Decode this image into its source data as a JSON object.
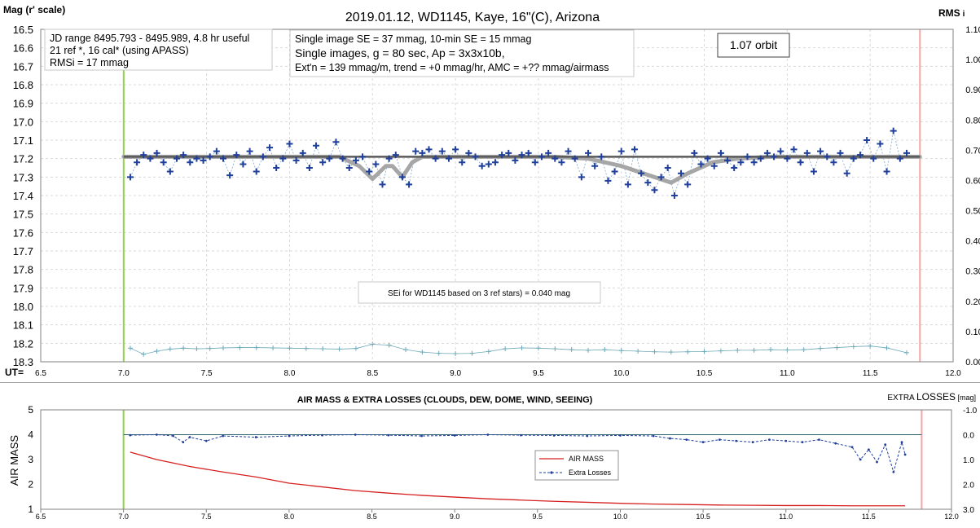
{
  "chart_data": [
    {
      "type": "scatter",
      "title": "2019.01.12, WD1145, Kaye, 16\"(C), Arizona",
      "ylabel": "Mag (r' scale)",
      "y2label": "RMS",
      "y2label_suffix": "i",
      "xlabel_left": "UT=",
      "xlim": [
        6.5,
        12.0
      ],
      "ylim": [
        18.3,
        16.5
      ],
      "y2lim": [
        0.0,
        1.1
      ],
      "grid": true,
      "xticks": [
        "6.5",
        "7.0",
        "7.5",
        "8.0",
        "8.5",
        "9.0",
        "9.5",
        "10.0",
        "10.5",
        "11.0",
        "11.5",
        "12.0"
      ],
      "yticks": [
        "16.5",
        "16.6",
        "16.7",
        "16.8",
        "16.9",
        "17.0",
        "17.1",
        "17.2",
        "17.3",
        "17.4",
        "17.5",
        "17.6",
        "17.7",
        "17.8",
        "17.9",
        "18.0",
        "18.1",
        "18.2",
        "18.3"
      ],
      "y2ticks": [
        "1.10",
        "1.00",
        "0.90",
        "0.80",
        "0.70",
        "0.60",
        "0.50",
        "0.40",
        "0.30",
        "0.20",
        "0.10",
        "0.00"
      ],
      "vlines": [
        {
          "x": 7.0,
          "color": "#92d050"
        },
        {
          "x": 11.8,
          "color": "#f4a6a6"
        }
      ],
      "annotations": {
        "box1": [
          "JD range 8495.793 - 8495.989, 4.8 hr useful",
          "21 ref *, 16 cal* (using APASS)",
          "RMSi = 17 mmag"
        ],
        "box2": [
          "Single image SE = 37 mmag, 10-min SE = 15 mmag",
          "Single images, g = 80 sec, Ap = 3x3x10b,",
          "Ext'n = 139 mmag/m, trend = +0 mmag/hr, AMC = +?? mmag/airmass"
        ],
        "orbit": "1.07 orbit",
        "sei": "SEi for WD1145 based on 3 ref stars) = 0.040 mag"
      },
      "series": [
        {
          "marker": "+",
          "color": "#1f3f9a",
          "x": [
            7.04,
            7.08,
            7.12,
            7.16,
            7.2,
            7.24,
            7.28,
            7.32,
            7.36,
            7.4,
            7.44,
            7.48,
            7.52,
            7.56,
            7.6,
            7.64,
            7.68,
            7.72,
            7.76,
            7.8,
            7.84,
            7.88,
            7.92,
            7.96,
            8.0,
            8.04,
            8.08,
            8.12,
            8.16,
            8.2,
            8.24,
            8.28,
            8.32,
            8.36,
            8.4,
            8.44,
            8.48,
            8.52,
            8.56,
            8.6,
            8.64,
            8.68,
            8.72,
            8.76,
            8.8,
            8.84,
            8.88,
            8.92,
            8.96,
            9.0,
            9.04,
            9.08,
            9.12,
            9.16,
            9.2,
            9.24,
            9.28,
            9.32,
            9.36,
            9.4,
            9.44,
            9.48,
            9.52,
            9.56,
            9.6,
            9.64,
            9.68,
            9.72,
            9.76,
            9.8,
            9.84,
            9.88,
            9.92,
            9.96,
            10.0,
            10.04,
            10.08,
            10.12,
            10.16,
            10.2,
            10.24,
            10.28,
            10.32,
            10.36,
            10.4,
            10.44,
            10.48,
            10.52,
            10.56,
            10.6,
            10.64,
            10.68,
            10.72,
            10.76,
            10.8,
            10.84,
            10.88,
            10.92,
            10.96,
            11.0,
            11.04,
            11.08,
            11.12,
            11.16,
            11.2,
            11.24,
            11.28,
            11.32,
            11.36,
            11.4,
            11.44,
            11.48,
            11.52,
            11.56,
            11.6,
            11.64,
            11.68,
            11.72
          ],
          "y": [
            17.3,
            17.22,
            17.18,
            17.2,
            17.17,
            17.22,
            17.27,
            17.2,
            17.18,
            17.22,
            17.2,
            17.21,
            17.19,
            17.16,
            17.2,
            17.29,
            17.18,
            17.23,
            17.16,
            17.27,
            17.19,
            17.14,
            17.25,
            17.2,
            17.12,
            17.21,
            17.17,
            17.25,
            17.13,
            17.22,
            17.2,
            17.11,
            17.2,
            17.25,
            17.21,
            17.19,
            17.27,
            17.23,
            17.34,
            17.2,
            17.18,
            17.3,
            17.34,
            17.16,
            17.17,
            17.15,
            17.2,
            17.16,
            17.2,
            17.15,
            17.22,
            17.17,
            17.19,
            17.24,
            17.23,
            17.22,
            17.18,
            17.17,
            17.21,
            17.18,
            17.17,
            17.22,
            17.19,
            17.17,
            17.2,
            17.22,
            17.16,
            17.2,
            17.3,
            17.17,
            17.24,
            17.19,
            17.32,
            17.27,
            17.16,
            17.34,
            17.15,
            17.28,
            17.33,
            17.37,
            17.3,
            17.25,
            17.4,
            17.28,
            17.34,
            17.17,
            17.23,
            17.2,
            17.24,
            17.17,
            17.21,
            17.25,
            17.22,
            17.19,
            17.22,
            17.2,
            17.17,
            17.19,
            17.16,
            17.2,
            17.15,
            17.22,
            17.17,
            17.27,
            17.16,
            17.19,
            17.22,
            17.17,
            17.28,
            17.2,
            17.18,
            17.1,
            17.2,
            17.12,
            17.27,
            17.05,
            17.2,
            17.17
          ]
        },
        {
          "name": "model",
          "color": "#a6a6a6",
          "x": [
            7.0,
            8.3,
            8.42,
            8.5,
            8.58,
            8.62,
            8.68,
            8.74,
            8.8,
            9.2,
            9.6,
            9.8,
            10.0,
            10.2,
            10.3,
            10.4,
            10.55,
            10.7,
            10.9,
            11.8
          ],
          "y": [
            17.19,
            17.19,
            17.24,
            17.31,
            17.24,
            17.24,
            17.3,
            17.22,
            17.19,
            17.19,
            17.19,
            17.2,
            17.24,
            17.3,
            17.33,
            17.28,
            17.22,
            17.2,
            17.19,
            17.19
          ]
        },
        {
          "name": "mean",
          "color": "#595959",
          "x": [
            7.0,
            11.8
          ],
          "y": [
            17.19,
            17.19
          ]
        },
        {
          "name": "RMSi",
          "marker": "+",
          "color": "#6fa9b8",
          "axis": "y2",
          "x": [
            7.04,
            7.12,
            7.2,
            7.28,
            7.36,
            7.44,
            7.52,
            7.6,
            7.7,
            7.8,
            7.9,
            8.0,
            8.1,
            8.2,
            8.3,
            8.4,
            8.5,
            8.6,
            8.7,
            8.8,
            8.9,
            9.0,
            9.1,
            9.2,
            9.3,
            9.4,
            9.5,
            9.6,
            9.7,
            9.8,
            9.9,
            10.0,
            10.1,
            10.2,
            10.3,
            10.4,
            10.5,
            10.6,
            10.7,
            10.8,
            10.9,
            11.0,
            11.1,
            11.2,
            11.3,
            11.4,
            11.5,
            11.6,
            11.72
          ],
          "y": [
            0.045,
            0.025,
            0.035,
            0.042,
            0.045,
            0.043,
            0.044,
            0.046,
            0.047,
            0.047,
            0.046,
            0.045,
            0.044,
            0.043,
            0.042,
            0.044,
            0.058,
            0.055,
            0.04,
            0.032,
            0.028,
            0.027,
            0.028,
            0.034,
            0.043,
            0.046,
            0.045,
            0.043,
            0.04,
            0.038,
            0.04,
            0.037,
            0.035,
            0.033,
            0.032,
            0.033,
            0.034,
            0.036,
            0.038,
            0.038,
            0.04,
            0.039,
            0.04,
            0.044,
            0.047,
            0.05,
            0.052,
            0.046,
            0.03
          ]
        }
      ]
    },
    {
      "type": "line",
      "title": "AIR MASS & EXTRA LOSSES (CLOUDS, DEW, DOME, WIND, SEEING)",
      "ylabel": "AIR MASS",
      "y2label": "EXTRA LOSSES",
      "y2label_parts": [
        "EXTRA ",
        "LOSSES",
        " [mag]"
      ],
      "xlim": [
        6.5,
        12.0
      ],
      "ylim": [
        1,
        5
      ],
      "y2lim": [
        3.0,
        -1.0
      ],
      "xticks": [
        "6.5",
        "7.0",
        "7.5",
        "8.0",
        "8.5",
        "9.0",
        "9.5",
        "10.0",
        "10.5",
        "11.0",
        "11.5",
        "12.0"
      ],
      "yticks": [
        "5",
        "4",
        "3",
        "2",
        "1"
      ],
      "y2ticks": [
        "-1.0",
        "0.0",
        "1.0",
        "2.0",
        "3.0"
      ],
      "legend": "center-right",
      "vlines": [
        {
          "x": 7.0,
          "color": "#92d050"
        },
        {
          "x": 11.82,
          "color": "#f4a6a6"
        }
      ],
      "series": [
        {
          "name": "AIR MASS",
          "color": "#d62020",
          "axis": "y",
          "x": [
            7.04,
            7.2,
            7.4,
            7.6,
            7.8,
            8.0,
            8.2,
            8.4,
            8.6,
            8.8,
            9.0,
            9.2,
            9.4,
            9.6,
            9.8,
            10.0,
            10.2,
            10.4,
            10.6,
            10.8,
            11.0,
            11.2,
            11.4,
            11.6,
            11.72
          ],
          "y": [
            3.3,
            3.0,
            2.72,
            2.5,
            2.3,
            2.05,
            1.9,
            1.75,
            1.65,
            1.56,
            1.49,
            1.42,
            1.37,
            1.32,
            1.28,
            1.24,
            1.21,
            1.19,
            1.17,
            1.16,
            1.15,
            1.15,
            1.14,
            1.14,
            1.14
          ]
        },
        {
          "name": "Extra Losses",
          "color": "#1f3f9a",
          "axis": "y2",
          "x": [
            7.04,
            7.2,
            7.3,
            7.36,
            7.4,
            7.5,
            7.6,
            7.8,
            8.0,
            8.2,
            8.4,
            8.6,
            8.8,
            9.0,
            9.2,
            9.4,
            9.6,
            9.8,
            10.0,
            10.2,
            10.3,
            10.4,
            10.5,
            10.6,
            10.7,
            10.8,
            10.9,
            11.0,
            11.1,
            11.2,
            11.3,
            11.4,
            11.45,
            11.5,
            11.55,
            11.6,
            11.65,
            11.7,
            11.72
          ],
          "y": [
            0.02,
            0.0,
            0.05,
            0.3,
            0.1,
            0.25,
            0.05,
            0.1,
            0.05,
            0.02,
            0.0,
            0.02,
            0.05,
            0.03,
            0.0,
            0.02,
            0.03,
            0.05,
            0.03,
            0.05,
            0.15,
            0.2,
            0.3,
            0.2,
            0.25,
            0.3,
            0.2,
            0.25,
            0.3,
            0.2,
            0.35,
            0.5,
            1.0,
            0.6,
            1.1,
            0.4,
            1.5,
            0.3,
            0.8
          ]
        }
      ]
    }
  ]
}
